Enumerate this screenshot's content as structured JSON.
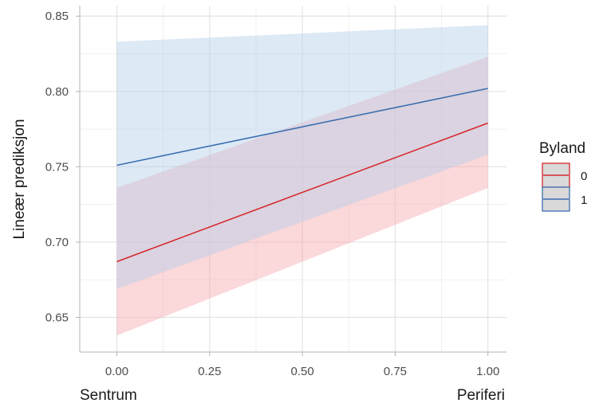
{
  "chart_data": {
    "type": "line",
    "title": "",
    "xlabel_left": "Sentrum",
    "xlabel_right": "Periferi",
    "ylabel": "Lineær prediksjon",
    "x_ticks": [
      "0.00",
      "0.25",
      "0.50",
      "0.75",
      "1.00"
    ],
    "y_ticks": [
      "0.65",
      "0.70",
      "0.75",
      "0.80",
      "0.85"
    ],
    "xlim": [
      -0.1,
      1.05
    ],
    "ylim": [
      0.627,
      0.857
    ],
    "grid": true,
    "legend": {
      "title": "Byland",
      "position": "right"
    },
    "series": [
      {
        "name": "0",
        "color": "#d6282d",
        "fill": "#f7a8ad",
        "x": [
          0,
          1
        ],
        "y": [
          0.687,
          0.779
        ],
        "lower": [
          0.638,
          0.736
        ],
        "upper": [
          0.736,
          0.823
        ]
      },
      {
        "name": "1",
        "color": "#3a6fb0",
        "fill": "#b3cfe8",
        "x": [
          0,
          1
        ],
        "y": [
          0.751,
          0.802
        ],
        "lower": [
          0.669,
          0.758
        ],
        "upper": [
          0.833,
          0.844
        ]
      }
    ]
  }
}
